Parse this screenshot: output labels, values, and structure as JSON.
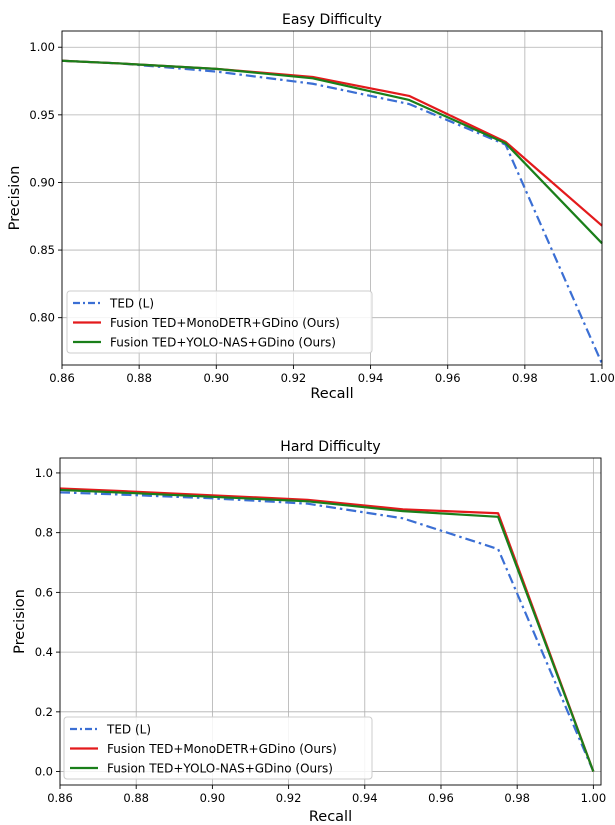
{
  "chart_data": [
    {
      "type": "line",
      "title": "Easy Difficulty",
      "xlabel": "Recall",
      "ylabel": "Precision",
      "xlim": [
        0.86,
        1.0
      ],
      "ylim": [
        0.765,
        1.012
      ],
      "xticks": [
        0.86,
        0.88,
        0.9,
        0.92,
        0.94,
        0.96,
        0.98,
        1.0
      ],
      "xtick_labels": [
        "0.86",
        "0.88",
        "0.90",
        "0.92",
        "0.94",
        "0.96",
        "0.98",
        "1.00"
      ],
      "yticks": [
        0.8,
        0.85,
        0.9,
        0.95,
        1.0
      ],
      "ytick_labels": [
        "0.80",
        "0.85",
        "0.90",
        "0.95",
        "1.00"
      ],
      "grid": true,
      "legend_position": "lower-left",
      "series": [
        {
          "name": "TED (L)",
          "color": "#3b6fd4",
          "dash": "dashdot",
          "x": [
            0.86,
            0.875,
            0.9,
            0.925,
            0.95,
            0.975,
            1.0
          ],
          "y": [
            0.99,
            0.988,
            0.982,
            0.973,
            0.958,
            0.928,
            0.766
          ]
        },
        {
          "name": "Fusion TED+MonoDETR+GDino (Ours)",
          "color": "#e31a1c",
          "dash": "solid",
          "x": [
            0.86,
            0.875,
            0.9,
            0.925,
            0.95,
            0.975,
            1.0
          ],
          "y": [
            0.99,
            0.988,
            0.984,
            0.978,
            0.964,
            0.93,
            0.868
          ]
        },
        {
          "name": "Fusion TED+YOLO-NAS+GDino (Ours)",
          "color": "#1a7f1a",
          "dash": "solid",
          "x": [
            0.86,
            0.875,
            0.9,
            0.925,
            0.95,
            0.975,
            1.0
          ],
          "y": [
            0.99,
            0.988,
            0.984,
            0.977,
            0.961,
            0.929,
            0.855
          ]
        }
      ]
    },
    {
      "type": "line",
      "title": "Hard Difficulty",
      "xlabel": "Recall",
      "ylabel": "Precision",
      "xlim": [
        0.86,
        1.002
      ],
      "ylim": [
        -0.045,
        1.05
      ],
      "xticks": [
        0.86,
        0.88,
        0.9,
        0.92,
        0.94,
        0.96,
        0.98,
        1.0
      ],
      "xtick_labels": [
        "0.86",
        "0.88",
        "0.90",
        "0.92",
        "0.94",
        "0.96",
        "0.98",
        "1.00"
      ],
      "yticks": [
        0.0,
        0.2,
        0.4,
        0.6,
        0.8,
        1.0
      ],
      "ytick_labels": [
        "0.0",
        "0.2",
        "0.4",
        "0.6",
        "0.8",
        "1.0"
      ],
      "grid": true,
      "legend_position": "lower-left",
      "series": [
        {
          "name": "TED (L)",
          "color": "#3b6fd4",
          "dash": "dashdot",
          "x": [
            0.86,
            0.875,
            0.9,
            0.925,
            0.95,
            0.975,
            1.0
          ],
          "y": [
            0.935,
            0.928,
            0.915,
            0.897,
            0.848,
            0.745,
            0.0
          ]
        },
        {
          "name": "Fusion TED+MonoDETR+GDino (Ours)",
          "color": "#e31a1c",
          "dash": "solid",
          "x": [
            0.86,
            0.875,
            0.9,
            0.925,
            0.95,
            0.975,
            1.0
          ],
          "y": [
            0.948,
            0.94,
            0.925,
            0.91,
            0.878,
            0.865,
            0.0
          ]
        },
        {
          "name": "Fusion TED+YOLO-NAS+GDino (Ours)",
          "color": "#1a7f1a",
          "dash": "solid",
          "x": [
            0.86,
            0.875,
            0.9,
            0.925,
            0.95,
            0.975,
            1.0
          ],
          "y": [
            0.943,
            0.935,
            0.92,
            0.905,
            0.872,
            0.853,
            0.0
          ]
        }
      ]
    }
  ]
}
